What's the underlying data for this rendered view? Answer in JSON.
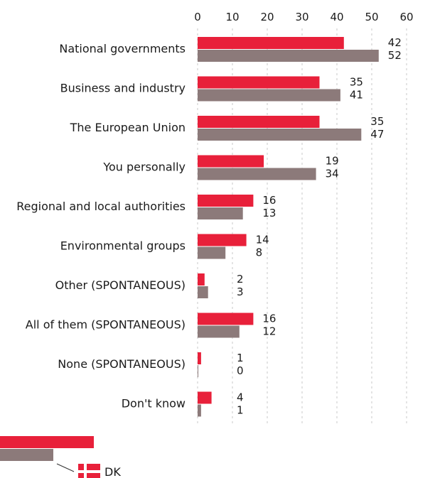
{
  "chart_data": {
    "type": "bar",
    "orientation": "horizontal",
    "xlim": [
      0,
      60
    ],
    "ticks": [
      0,
      10,
      20,
      30,
      40,
      50,
      60
    ],
    "grid": true,
    "categories": [
      "National governments",
      "Business and industry",
      "The European Union",
      "You personally",
      "Regional and local authorities",
      "Environmental groups",
      "Other (SPONTANEOUS)",
      "All of them (SPONTANEOUS)",
      "None (SPONTANEOUS)",
      "Don't know"
    ],
    "series": [
      {
        "values": [
          42,
          35,
          35,
          19,
          16,
          14,
          2,
          16,
          1,
          4
        ],
        "color": "#e8203a"
      },
      {
        "values": [
          52,
          41,
          47,
          34,
          13,
          8,
          3,
          12,
          0,
          1
        ],
        "color": "#8c7a7a"
      }
    ],
    "legend": {
      "label": "DK",
      "position": "bottom-left"
    }
  }
}
